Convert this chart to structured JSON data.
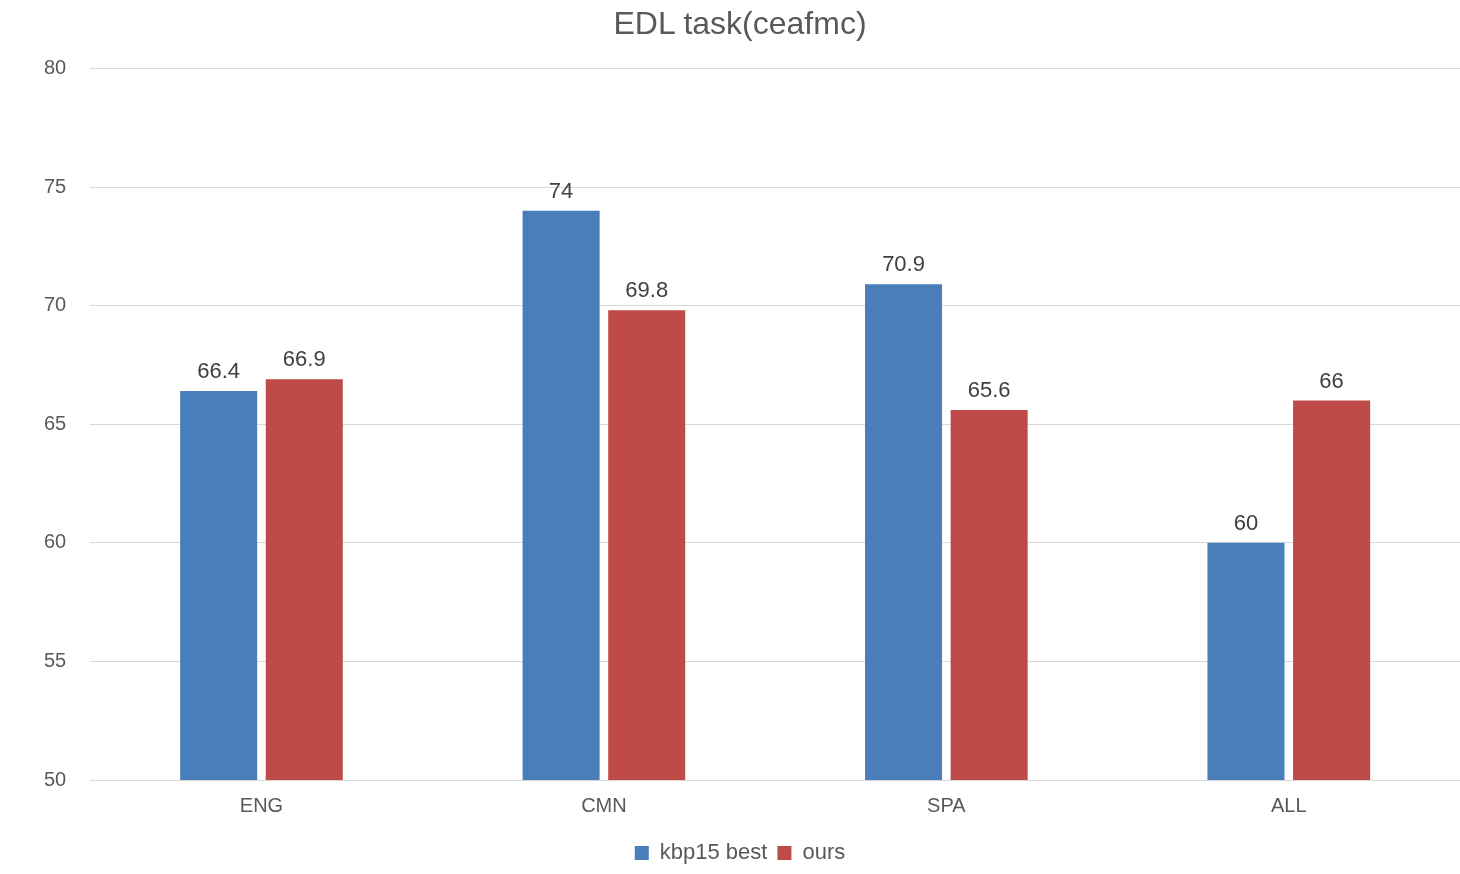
{
  "chart_data": {
    "type": "bar",
    "title": "EDL task(ceafmc)",
    "categories": [
      "ENG",
      "CMN",
      "SPA",
      "ALL"
    ],
    "series": [
      {
        "name": "kbp15 best",
        "color": "#4a7ebb",
        "values": [
          66.4,
          74,
          70.9,
          60
        ]
      },
      {
        "name": "ours",
        "color": "#be4b48",
        "values": [
          66.9,
          69.8,
          65.6,
          66
        ]
      }
    ],
    "ylim": [
      50,
      80
    ],
    "yticks": [
      50,
      55,
      60,
      65,
      70,
      75,
      80
    ],
    "grid": "y",
    "legend": "bottom",
    "data_labels": true
  }
}
